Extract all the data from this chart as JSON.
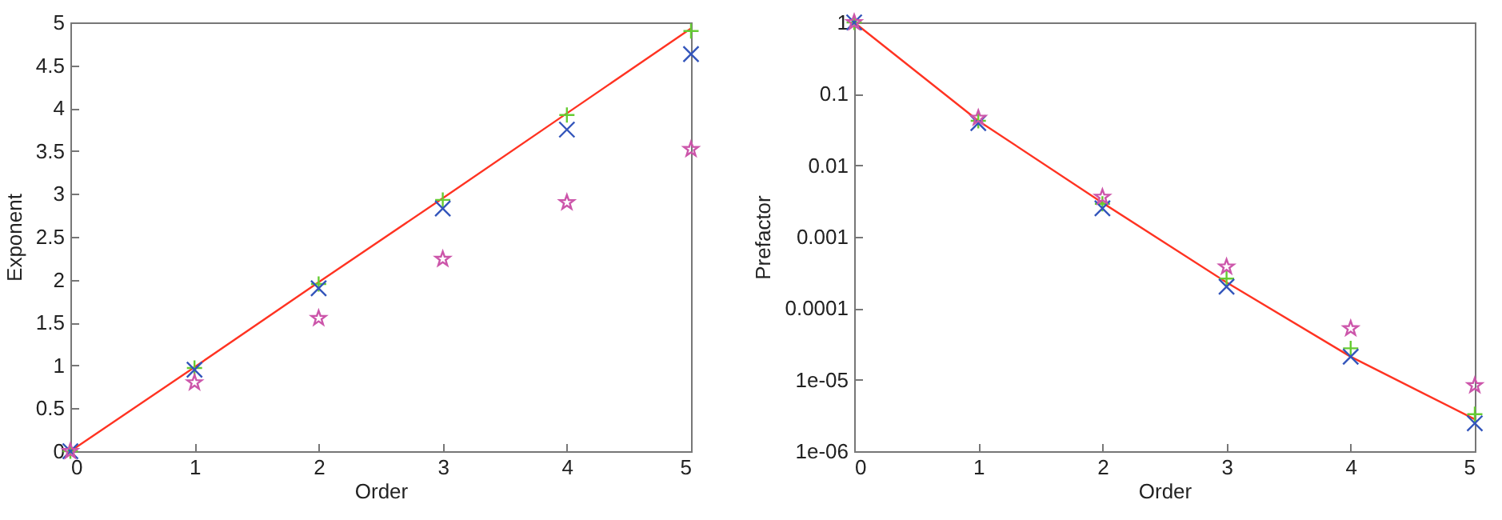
{
  "chart_data": [
    {
      "type": "scatter",
      "xlabel": "Order",
      "ylabel": "Exponent",
      "x": [
        0,
        1,
        2,
        3,
        4,
        5
      ],
      "xlim": [
        0,
        5
      ],
      "xticks": [
        0,
        1,
        2,
        3,
        4,
        5
      ],
      "ylim": [
        0,
        5
      ],
      "yticks": [
        0,
        0.5,
        1,
        1.5,
        2,
        2.5,
        3,
        3.5,
        4,
        4.5,
        5
      ],
      "grid": false,
      "series": [
        {
          "type": "line",
          "color": "#ff3322",
          "marker": "none",
          "values": [
            0,
            0.98,
            1.97,
            2.95,
            3.94,
            4.93
          ]
        },
        {
          "color": "#66cc33",
          "marker": "cross",
          "values": [
            0,
            0.97,
            1.95,
            2.93,
            3.92,
            4.9
          ]
        },
        {
          "color": "#3355bb",
          "marker": "x",
          "values": [
            0,
            0.95,
            1.9,
            2.83,
            3.75,
            4.63
          ]
        },
        {
          "color": "#cc55aa",
          "marker": "star",
          "values": [
            0,
            0.8,
            1.55,
            2.24,
            2.9,
            3.52
          ]
        }
      ]
    },
    {
      "type": "scatter",
      "xlabel": "Order",
      "ylabel": "Prefactor",
      "x": [
        0,
        1,
        2,
        3,
        4,
        5
      ],
      "log": "y",
      "xlim": [
        0,
        5
      ],
      "xticks": [
        0,
        1,
        2,
        3,
        4,
        5
      ],
      "ylim": [
        1e-06,
        1
      ],
      "yticks": [
        {
          "value": 1e-06,
          "label": "1e-06"
        },
        {
          "value": 1e-05,
          "label": "1e-05"
        },
        0.0001,
        0.001,
        0.01,
        0.1,
        1
      ],
      "grid": false,
      "series": [
        {
          "type": "line",
          "color": "#ff3322",
          "marker": "none",
          "values": [
            1,
            0.042,
            0.003,
            0.00023,
            2.1e-05,
            2.8e-06
          ]
        },
        {
          "color": "#66cc33",
          "marker": "cross",
          "values": [
            1,
            0.042,
            0.0029,
            0.00026,
            2.75e-05,
            3.3e-06
          ]
        },
        {
          "color": "#3355bb",
          "marker": "x",
          "values": [
            1,
            0.039,
            0.0025,
            0.0002,
            2.1e-05,
            2.45e-06
          ]
        },
        {
          "color": "#cc55aa",
          "marker": "star",
          "values": [
            1,
            0.046,
            0.0036,
            0.00038,
            5.2e-05,
            8.3e-06
          ]
        }
      ]
    }
  ]
}
